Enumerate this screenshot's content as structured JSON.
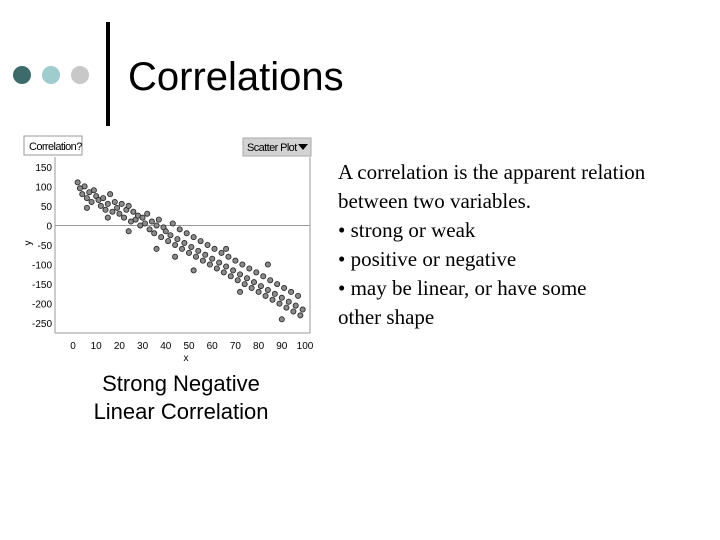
{
  "slide": {
    "title": "Correlations",
    "caption_line1": "Strong Negative",
    "caption_line2": "Linear Correlation",
    "body_lines": [
      "A correlation is the apparent relation",
      "between two variables.",
      "• strong or weak",
      "• positive or negative",
      "• may be linear, or have some",
      "other shape"
    ],
    "colors": {
      "dot1": "#3d6b6b",
      "dot2": "#9fcccc",
      "dot3": "#c8c8c8",
      "title_bar": "#000000"
    }
  },
  "chart_data": {
    "type": "scatter",
    "panel_title": "Correlation?",
    "view_menu": "Scatter Plot",
    "xlabel": "x",
    "ylabel": "y",
    "xlim": [
      0,
      100
    ],
    "ylim": [
      -275,
      175
    ],
    "x_ticks": [
      0,
      10,
      20,
      30,
      40,
      50,
      60,
      70,
      80,
      90,
      100
    ],
    "y_ticks": [
      150,
      100,
      50,
      0,
      -50,
      -100,
      -150,
      -200,
      -250
    ],
    "x_tick_labels": [
      "0",
      "10",
      "20",
      "30",
      "40",
      "50",
      "60",
      "70",
      "80",
      "90",
      "100"
    ],
    "y_tick_labels": [
      "150",
      "100",
      "50",
      "0",
      "-50",
      "-100",
      "-150",
      "-200",
      "-250"
    ],
    "reference_line_y": 0,
    "grid": false,
    "points": [
      [
        2,
        110
      ],
      [
        3,
        95
      ],
      [
        4,
        80
      ],
      [
        5,
        100
      ],
      [
        6,
        70
      ],
      [
        7,
        85
      ],
      [
        8,
        60
      ],
      [
        9,
        90
      ],
      [
        10,
        75
      ],
      [
        11,
        65
      ],
      [
        12,
        50
      ],
      [
        13,
        70
      ],
      [
        14,
        40
      ],
      [
        15,
        55
      ],
      [
        16,
        80
      ],
      [
        17,
        35
      ],
      [
        18,
        60
      ],
      [
        19,
        45
      ],
      [
        20,
        30
      ],
      [
        21,
        55
      ],
      [
        22,
        20
      ],
      [
        23,
        40
      ],
      [
        24,
        50
      ],
      [
        25,
        10
      ],
      [
        26,
        35
      ],
      [
        27,
        15
      ],
      [
        28,
        25
      ],
      [
        29,
        0
      ],
      [
        30,
        20
      ],
      [
        31,
        5
      ],
      [
        32,
        30
      ],
      [
        33,
        -10
      ],
      [
        34,
        10
      ],
      [
        35,
        -20
      ],
      [
        36,
        0
      ],
      [
        37,
        15
      ],
      [
        38,
        -30
      ],
      [
        39,
        -5
      ],
      [
        40,
        -15
      ],
      [
        41,
        -40
      ],
      [
        42,
        -25
      ],
      [
        43,
        5
      ],
      [
        44,
        -50
      ],
      [
        45,
        -35
      ],
      [
        46,
        -10
      ],
      [
        47,
        -60
      ],
      [
        48,
        -45
      ],
      [
        49,
        -20
      ],
      [
        50,
        -70
      ],
      [
        51,
        -55
      ],
      [
        52,
        -30
      ],
      [
        53,
        -80
      ],
      [
        54,
        -65
      ],
      [
        55,
        -40
      ],
      [
        56,
        -90
      ],
      [
        57,
        -75
      ],
      [
        58,
        -50
      ],
      [
        59,
        -100
      ],
      [
        60,
        -85
      ],
      [
        61,
        -60
      ],
      [
        62,
        -110
      ],
      [
        63,
        -95
      ],
      [
        64,
        -70
      ],
      [
        65,
        -120
      ],
      [
        66,
        -105
      ],
      [
        67,
        -80
      ],
      [
        68,
        -130
      ],
      [
        69,
        -115
      ],
      [
        70,
        -90
      ],
      [
        71,
        -140
      ],
      [
        72,
        -125
      ],
      [
        73,
        -100
      ],
      [
        74,
        -150
      ],
      [
        75,
        -135
      ],
      [
        76,
        -110
      ],
      [
        77,
        -160
      ],
      [
        78,
        -145
      ],
      [
        79,
        -120
      ],
      [
        80,
        -170
      ],
      [
        81,
        -155
      ],
      [
        82,
        -130
      ],
      [
        83,
        -180
      ],
      [
        84,
        -165
      ],
      [
        85,
        -140
      ],
      [
        86,
        -190
      ],
      [
        87,
        -175
      ],
      [
        88,
        -150
      ],
      [
        89,
        -200
      ],
      [
        90,
        -185
      ],
      [
        91,
        -160
      ],
      [
        92,
        -210
      ],
      [
        93,
        -195
      ],
      [
        94,
        -170
      ],
      [
        95,
        -220
      ],
      [
        96,
        -205
      ],
      [
        97,
        -180
      ],
      [
        98,
        -230
      ],
      [
        99,
        -215
      ],
      [
        6,
        45
      ],
      [
        24,
        -15
      ],
      [
        36,
        -60
      ],
      [
        52,
        -115
      ],
      [
        66,
        -60
      ],
      [
        72,
        -170
      ],
      [
        84,
        -100
      ],
      [
        90,
        -240
      ],
      [
        15,
        20
      ],
      [
        44,
        -80
      ]
    ]
  }
}
